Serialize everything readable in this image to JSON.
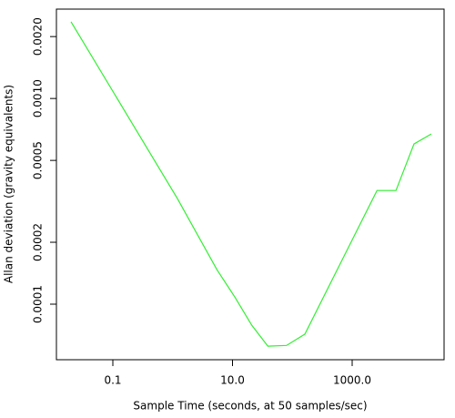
{
  "chart_data": {
    "type": "line",
    "xlabel": "Sample Time (seconds, at 50 samples/sec)",
    "ylabel": "Allan deviation (gravity equivalents)",
    "xscale": "log",
    "yscale": "log",
    "x": [
      0.02,
      1.2,
      5.5,
      11,
      21,
      39,
      80,
      162,
      2600,
      5400,
      10800,
      21000
    ],
    "series": [
      {
        "color": "#33ee33",
        "values": [
          0.00236,
          0.000326,
          0.000147,
          0.000108,
          7.9e-05,
          6.25e-05,
          6.3e-05,
          7.15e-05,
          0.000357,
          0.000357,
          0.000601,
          0.000672
        ]
      }
    ],
    "xlim": [
      0.0114,
      34360
    ],
    "xticks": [
      0.1,
      {
        "value": 10,
        "label": "10.0"
      },
      {
        "value": 1000,
        "label": "1000.0"
      }
    ],
    "ylim": [
      5.37e-05,
      0.00272
    ],
    "yticks": [
      0.0001,
      0.0002,
      0.0005,
      {
        "value": 0.001,
        "label": "0.0010"
      },
      {
        "value": 0.002,
        "label": "0.0020"
      }
    ]
  }
}
